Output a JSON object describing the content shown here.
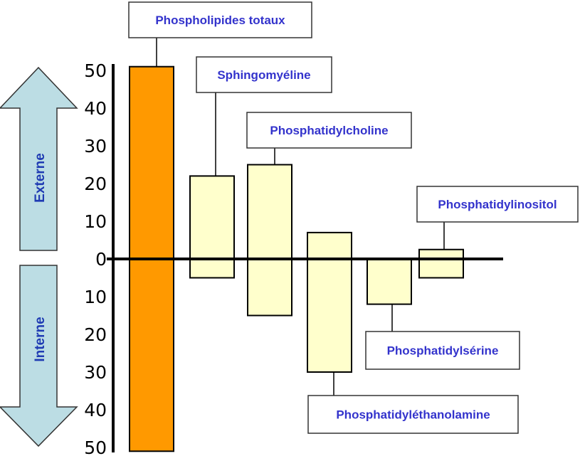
{
  "colors": {
    "total_bar": "#ff9900",
    "species_bar": "#ffffcc",
    "label_text": "#3333cc",
    "arrow_fill": "#bcdde4",
    "arrow_text": "#1f3bb3"
  },
  "arrows": {
    "up_label": "Externe",
    "down_label": "Interne"
  },
  "chart_data": {
    "type": "bar",
    "title": "",
    "xlabel": "",
    "ylabel": "",
    "ylim": [
      -50,
      50
    ],
    "yticks": [
      50,
      40,
      30,
      20,
      10,
      0,
      -10,
      -20,
      -30,
      -40,
      -50
    ],
    "ytick_labels": [
      "50",
      "40",
      "30",
      "20",
      "10",
      "0",
      "10",
      "20",
      "30",
      "40",
      "50"
    ],
    "categories": [
      "Phospholipides totaux",
      "Sphingomyéline",
      "Phosphatidylcholine",
      "Phosphatidyléthanolamine",
      "Phosphatidylsérine",
      "Phosphatidylinositol"
    ],
    "ranges": [
      {
        "name": "Phospholipides totaux",
        "top": 51,
        "bottom": -51
      },
      {
        "name": "Sphingomyéline",
        "top": 22,
        "bottom": -5
      },
      {
        "name": "Phosphatidylcholine",
        "top": 25,
        "bottom": -15
      },
      {
        "name": "Phosphatidyléthanolamine",
        "top": 7,
        "bottom": -30
      },
      {
        "name": "Phosphatidylsérine",
        "top": 0,
        "bottom": -12
      },
      {
        "name": "Phosphatidylinositol",
        "top": 2.5,
        "bottom": -5
      }
    ]
  }
}
